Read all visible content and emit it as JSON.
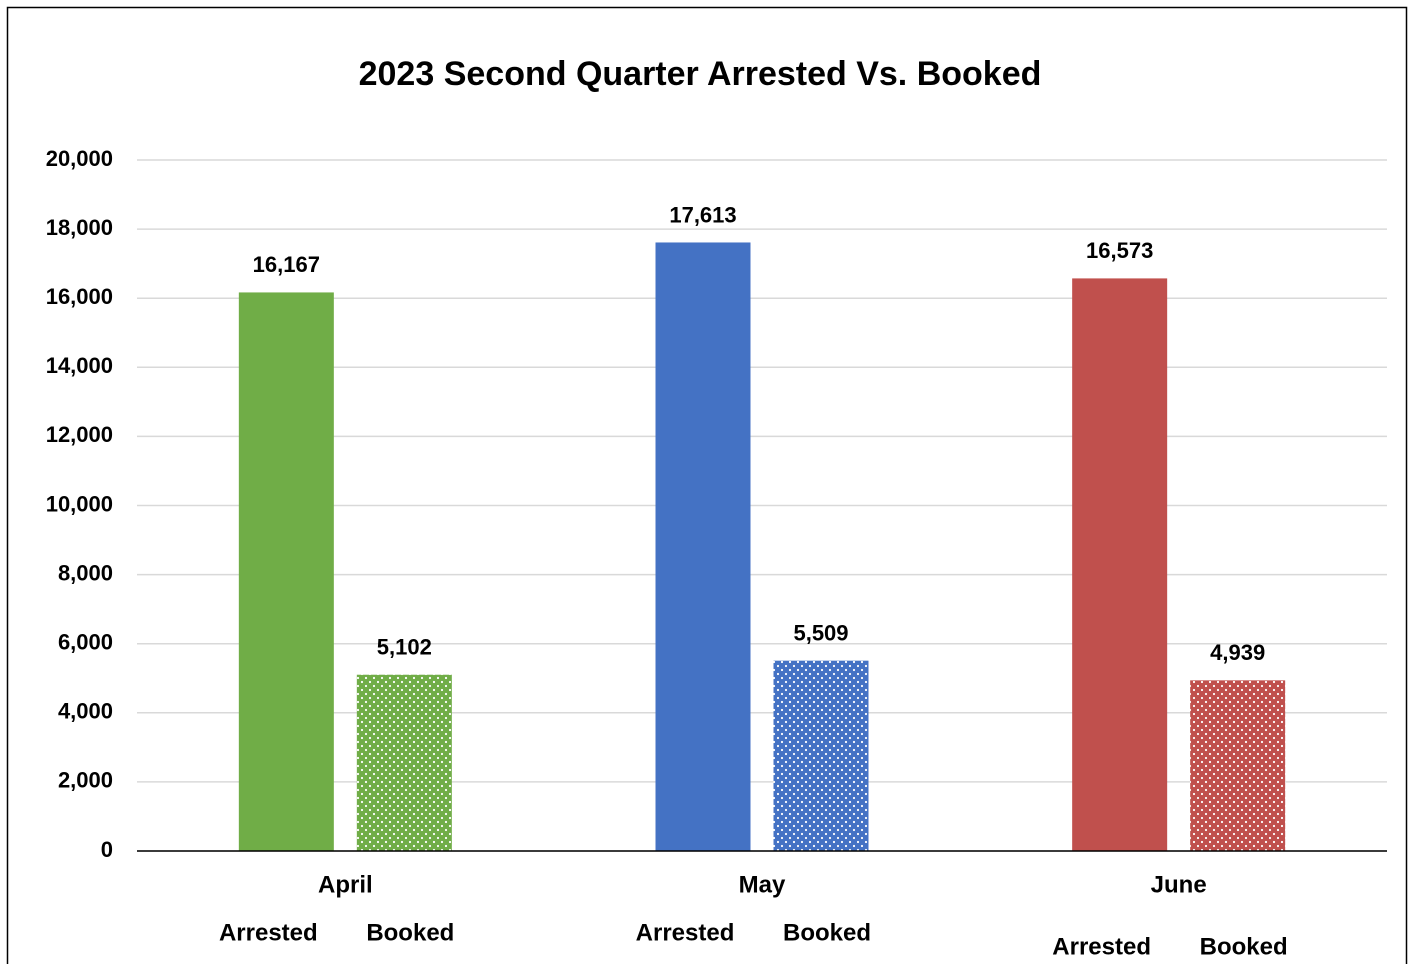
{
  "chart_data": {
    "type": "bar",
    "title": "2023 Second Quarter Arrested Vs. Booked",
    "categories": [
      "April",
      "May",
      "June"
    ],
    "category_colors": [
      "#70ad47",
      "#4472c4",
      "#c0504d"
    ],
    "series": [
      {
        "name": "Arrested",
        "pattern": "solid",
        "values": [
          16167,
          17613,
          16573
        ],
        "value_labels": [
          "16,167",
          "17,613",
          "16,573"
        ]
      },
      {
        "name": "Booked",
        "pattern": "dots",
        "values": [
          5102,
          5509,
          4939
        ],
        "value_labels": [
          "5,102",
          "5,509",
          "4,939"
        ]
      }
    ],
    "ylim": [
      0,
      20000
    ],
    "yticks": [
      0,
      {
        "value": 2000,
        "label": "2,000"
      },
      {
        "value": 4000,
        "label": "4,000"
      },
      {
        "value": 6000,
        "label": "6,000"
      },
      {
        "value": 8000,
        "label": "8,000"
      },
      {
        "value": 10000,
        "label": "10,000"
      },
      {
        "value": 12000,
        "label": "12,000"
      },
      {
        "value": 14000,
        "label": "14,000"
      },
      {
        "value": 16000,
        "label": "16,000"
      },
      {
        "value": 18000,
        "label": "18,000"
      },
      {
        "value": 20000,
        "label": "20,000"
      }
    ],
    "grid": true
  }
}
